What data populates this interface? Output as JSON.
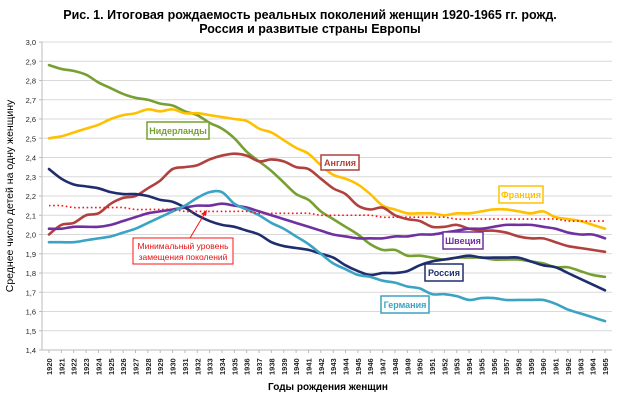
{
  "chart_data": {
    "type": "line",
    "title": "Рис. 1. Итоговая рождаемость реальных поколений женщин 1920-1965 гг. рожд.",
    "subtitle": "Россия и развитые страны Европы",
    "xlabel": "Годы рождения женщин",
    "ylabel": "Среднее число детей на одну женщину",
    "ylim": [
      1.4,
      3.0
    ],
    "yticks": [
      "1,4",
      "1,5",
      "1,6",
      "1,7",
      "1,8",
      "1,9",
      "2,0",
      "2,1",
      "2,2",
      "2,3",
      "2,4",
      "2,5",
      "2,6",
      "2,7",
      "2,8",
      "2,9",
      "3,0"
    ],
    "grid": true,
    "x": [
      1920,
      1921,
      1922,
      1923,
      1924,
      1925,
      1926,
      1927,
      1928,
      1929,
      1930,
      1931,
      1932,
      1933,
      1934,
      1935,
      1936,
      1937,
      1938,
      1939,
      1940,
      1941,
      1942,
      1943,
      1944,
      1945,
      1946,
      1947,
      1948,
      1949,
      1950,
      1951,
      1952,
      1953,
      1954,
      1955,
      1956,
      1957,
      1958,
      1959,
      1960,
      1961,
      1962,
      1963,
      1964,
      1965
    ],
    "series": [
      {
        "name": "Нидерланды",
        "color": "#77a033",
        "values": [
          2.88,
          2.86,
          2.85,
          2.83,
          2.79,
          2.76,
          2.73,
          2.71,
          2.7,
          2.68,
          2.67,
          2.64,
          2.62,
          2.58,
          2.55,
          2.5,
          2.43,
          2.38,
          2.33,
          2.27,
          2.21,
          2.18,
          2.12,
          2.08,
          2.04,
          2.0,
          1.95,
          1.92,
          1.92,
          1.89,
          1.89,
          1.88,
          1.87,
          1.88,
          1.88,
          1.88,
          1.87,
          1.87,
          1.87,
          1.86,
          1.85,
          1.83,
          1.83,
          1.81,
          1.79,
          1.78
        ]
      },
      {
        "name": "Франция",
        "color": "#ffc000",
        "values": [
          2.5,
          2.51,
          2.53,
          2.55,
          2.57,
          2.6,
          2.62,
          2.63,
          2.65,
          2.64,
          2.65,
          2.63,
          2.63,
          2.62,
          2.61,
          2.6,
          2.59,
          2.55,
          2.53,
          2.49,
          2.45,
          2.42,
          2.36,
          2.31,
          2.29,
          2.26,
          2.21,
          2.15,
          2.13,
          2.11,
          2.11,
          2.11,
          2.1,
          2.11,
          2.11,
          2.12,
          2.13,
          2.13,
          2.12,
          2.11,
          2.12,
          2.09,
          2.08,
          2.07,
          2.05,
          2.03
        ]
      },
      {
        "name": "Англия",
        "color": "#b0413e",
        "values": [
          2.0,
          2.05,
          2.06,
          2.1,
          2.11,
          2.16,
          2.19,
          2.2,
          2.24,
          2.28,
          2.34,
          2.35,
          2.36,
          2.39,
          2.41,
          2.42,
          2.41,
          2.38,
          2.39,
          2.38,
          2.35,
          2.34,
          2.29,
          2.24,
          2.21,
          2.15,
          2.13,
          2.14,
          2.1,
          2.08,
          2.07,
          2.04,
          2.04,
          2.05,
          2.03,
          2.02,
          2.02,
          2.01,
          1.99,
          1.98,
          1.98,
          1.96,
          1.94,
          1.93,
          1.92,
          1.91
        ]
      },
      {
        "name": "Швеция",
        "color": "#7030a0",
        "values": [
          2.03,
          2.03,
          2.04,
          2.04,
          2.04,
          2.05,
          2.07,
          2.09,
          2.11,
          2.12,
          2.13,
          2.14,
          2.15,
          2.15,
          2.16,
          2.15,
          2.14,
          2.12,
          2.1,
          2.08,
          2.06,
          2.04,
          2.02,
          2.0,
          1.99,
          1.98,
          1.98,
          1.98,
          1.99,
          1.99,
          2.0,
          2.0,
          2.01,
          2.02,
          2.03,
          2.03,
          2.04,
          2.05,
          2.05,
          2.05,
          2.04,
          2.03,
          2.01,
          2.0,
          2.0,
          1.98
        ]
      },
      {
        "name": "Россия",
        "color": "#1f2d6e",
        "values": [
          2.34,
          2.29,
          2.26,
          2.25,
          2.24,
          2.22,
          2.21,
          2.21,
          2.2,
          2.18,
          2.17,
          2.14,
          2.1,
          2.07,
          2.05,
          2.04,
          2.02,
          2.0,
          1.96,
          1.94,
          1.93,
          1.92,
          1.9,
          1.88,
          1.84,
          1.81,
          1.79,
          1.8,
          1.8,
          1.81,
          1.84,
          1.86,
          1.87,
          1.88,
          1.89,
          1.88,
          1.88,
          1.88,
          1.88,
          1.86,
          1.84,
          1.83,
          1.8,
          1.77,
          1.74,
          1.71
        ]
      },
      {
        "name": "Германия",
        "color": "#3ba3c3",
        "values": [
          1.96,
          1.96,
          1.96,
          1.97,
          1.98,
          1.99,
          2.01,
          2.03,
          2.06,
          2.09,
          2.12,
          2.15,
          2.19,
          2.22,
          2.22,
          2.16,
          2.13,
          2.1,
          2.06,
          2.03,
          1.99,
          1.95,
          1.9,
          1.85,
          1.82,
          1.79,
          1.78,
          1.76,
          1.75,
          1.73,
          1.72,
          1.69,
          1.69,
          1.68,
          1.66,
          1.67,
          1.67,
          1.66,
          1.66,
          1.66,
          1.66,
          1.64,
          1.61,
          1.59,
          1.57,
          1.55
        ]
      },
      {
        "name": "Минимальный уровень замещения поколений",
        "color": "#ff1010",
        "dashed": true,
        "values": [
          2.15,
          2.15,
          2.14,
          2.14,
          2.14,
          2.14,
          2.14,
          2.13,
          2.13,
          2.13,
          2.13,
          2.12,
          2.12,
          2.12,
          2.12,
          2.12,
          2.12,
          2.11,
          2.11,
          2.11,
          2.11,
          2.11,
          2.1,
          2.1,
          2.1,
          2.1,
          2.1,
          2.09,
          2.09,
          2.09,
          2.09,
          2.09,
          2.09,
          2.08,
          2.08,
          2.08,
          2.08,
          2.08,
          2.08,
          2.08,
          2.08,
          2.08,
          2.07,
          2.07,
          2.07,
          2.07
        ]
      }
    ],
    "labels": {
      "netherlands": "Нидерланды",
      "england": "Англия",
      "france": "Франция",
      "sweden": "Швеция",
      "russia": "Россия",
      "germany": "Германия",
      "replacement_line1": "Минимальный уровень",
      "replacement_line2": "замещения поколений"
    },
    "legend": "inline-labels"
  }
}
